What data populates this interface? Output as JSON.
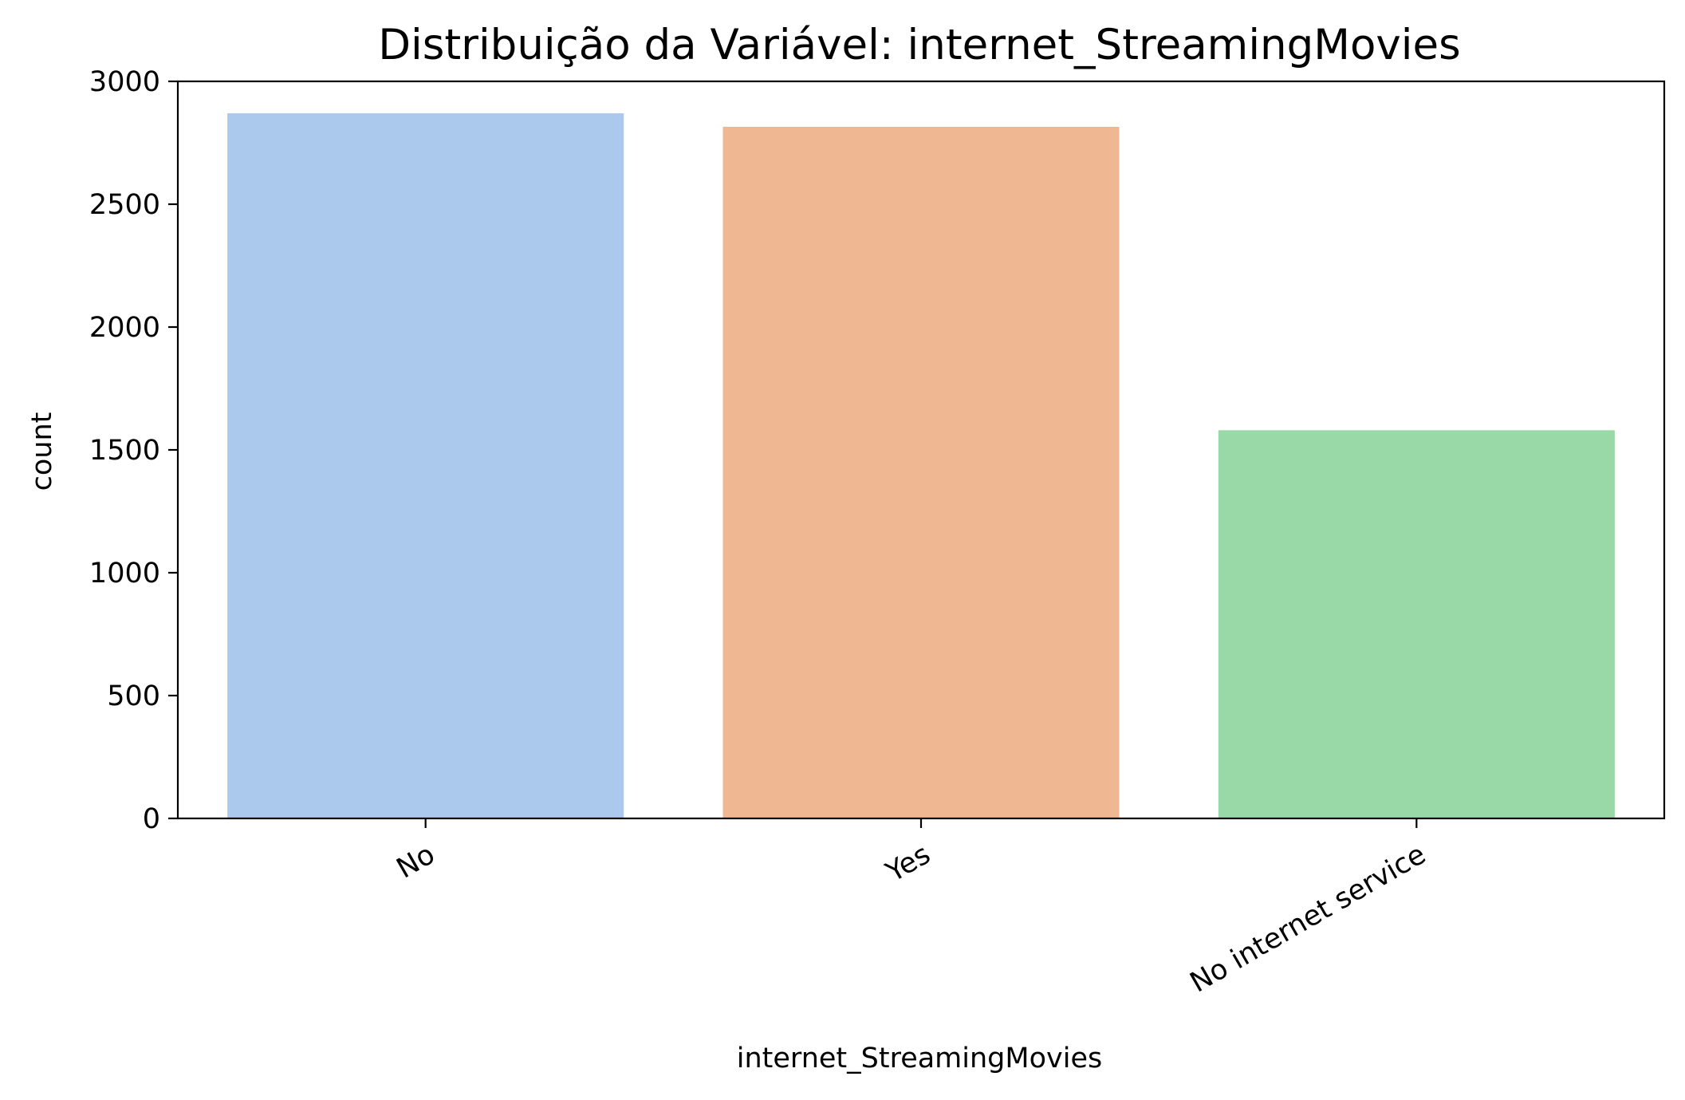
{
  "chart_data": {
    "type": "bar",
    "title": "Distribuição da Variável: internet_StreamingMovies",
    "xlabel": "internet_StreamingMovies",
    "ylabel": "count",
    "categories": [
      "No",
      "Yes",
      "No internet service"
    ],
    "values": [
      2870,
      2815,
      1580
    ],
    "ylim": [
      0,
      3000
    ],
    "yticks": [
      0,
      500,
      1000,
      1500,
      2000,
      2500,
      3000
    ],
    "colors": [
      "#abc9ec",
      "#f0b793",
      "#99d9a7"
    ],
    "grid": false,
    "legend": "none"
  }
}
